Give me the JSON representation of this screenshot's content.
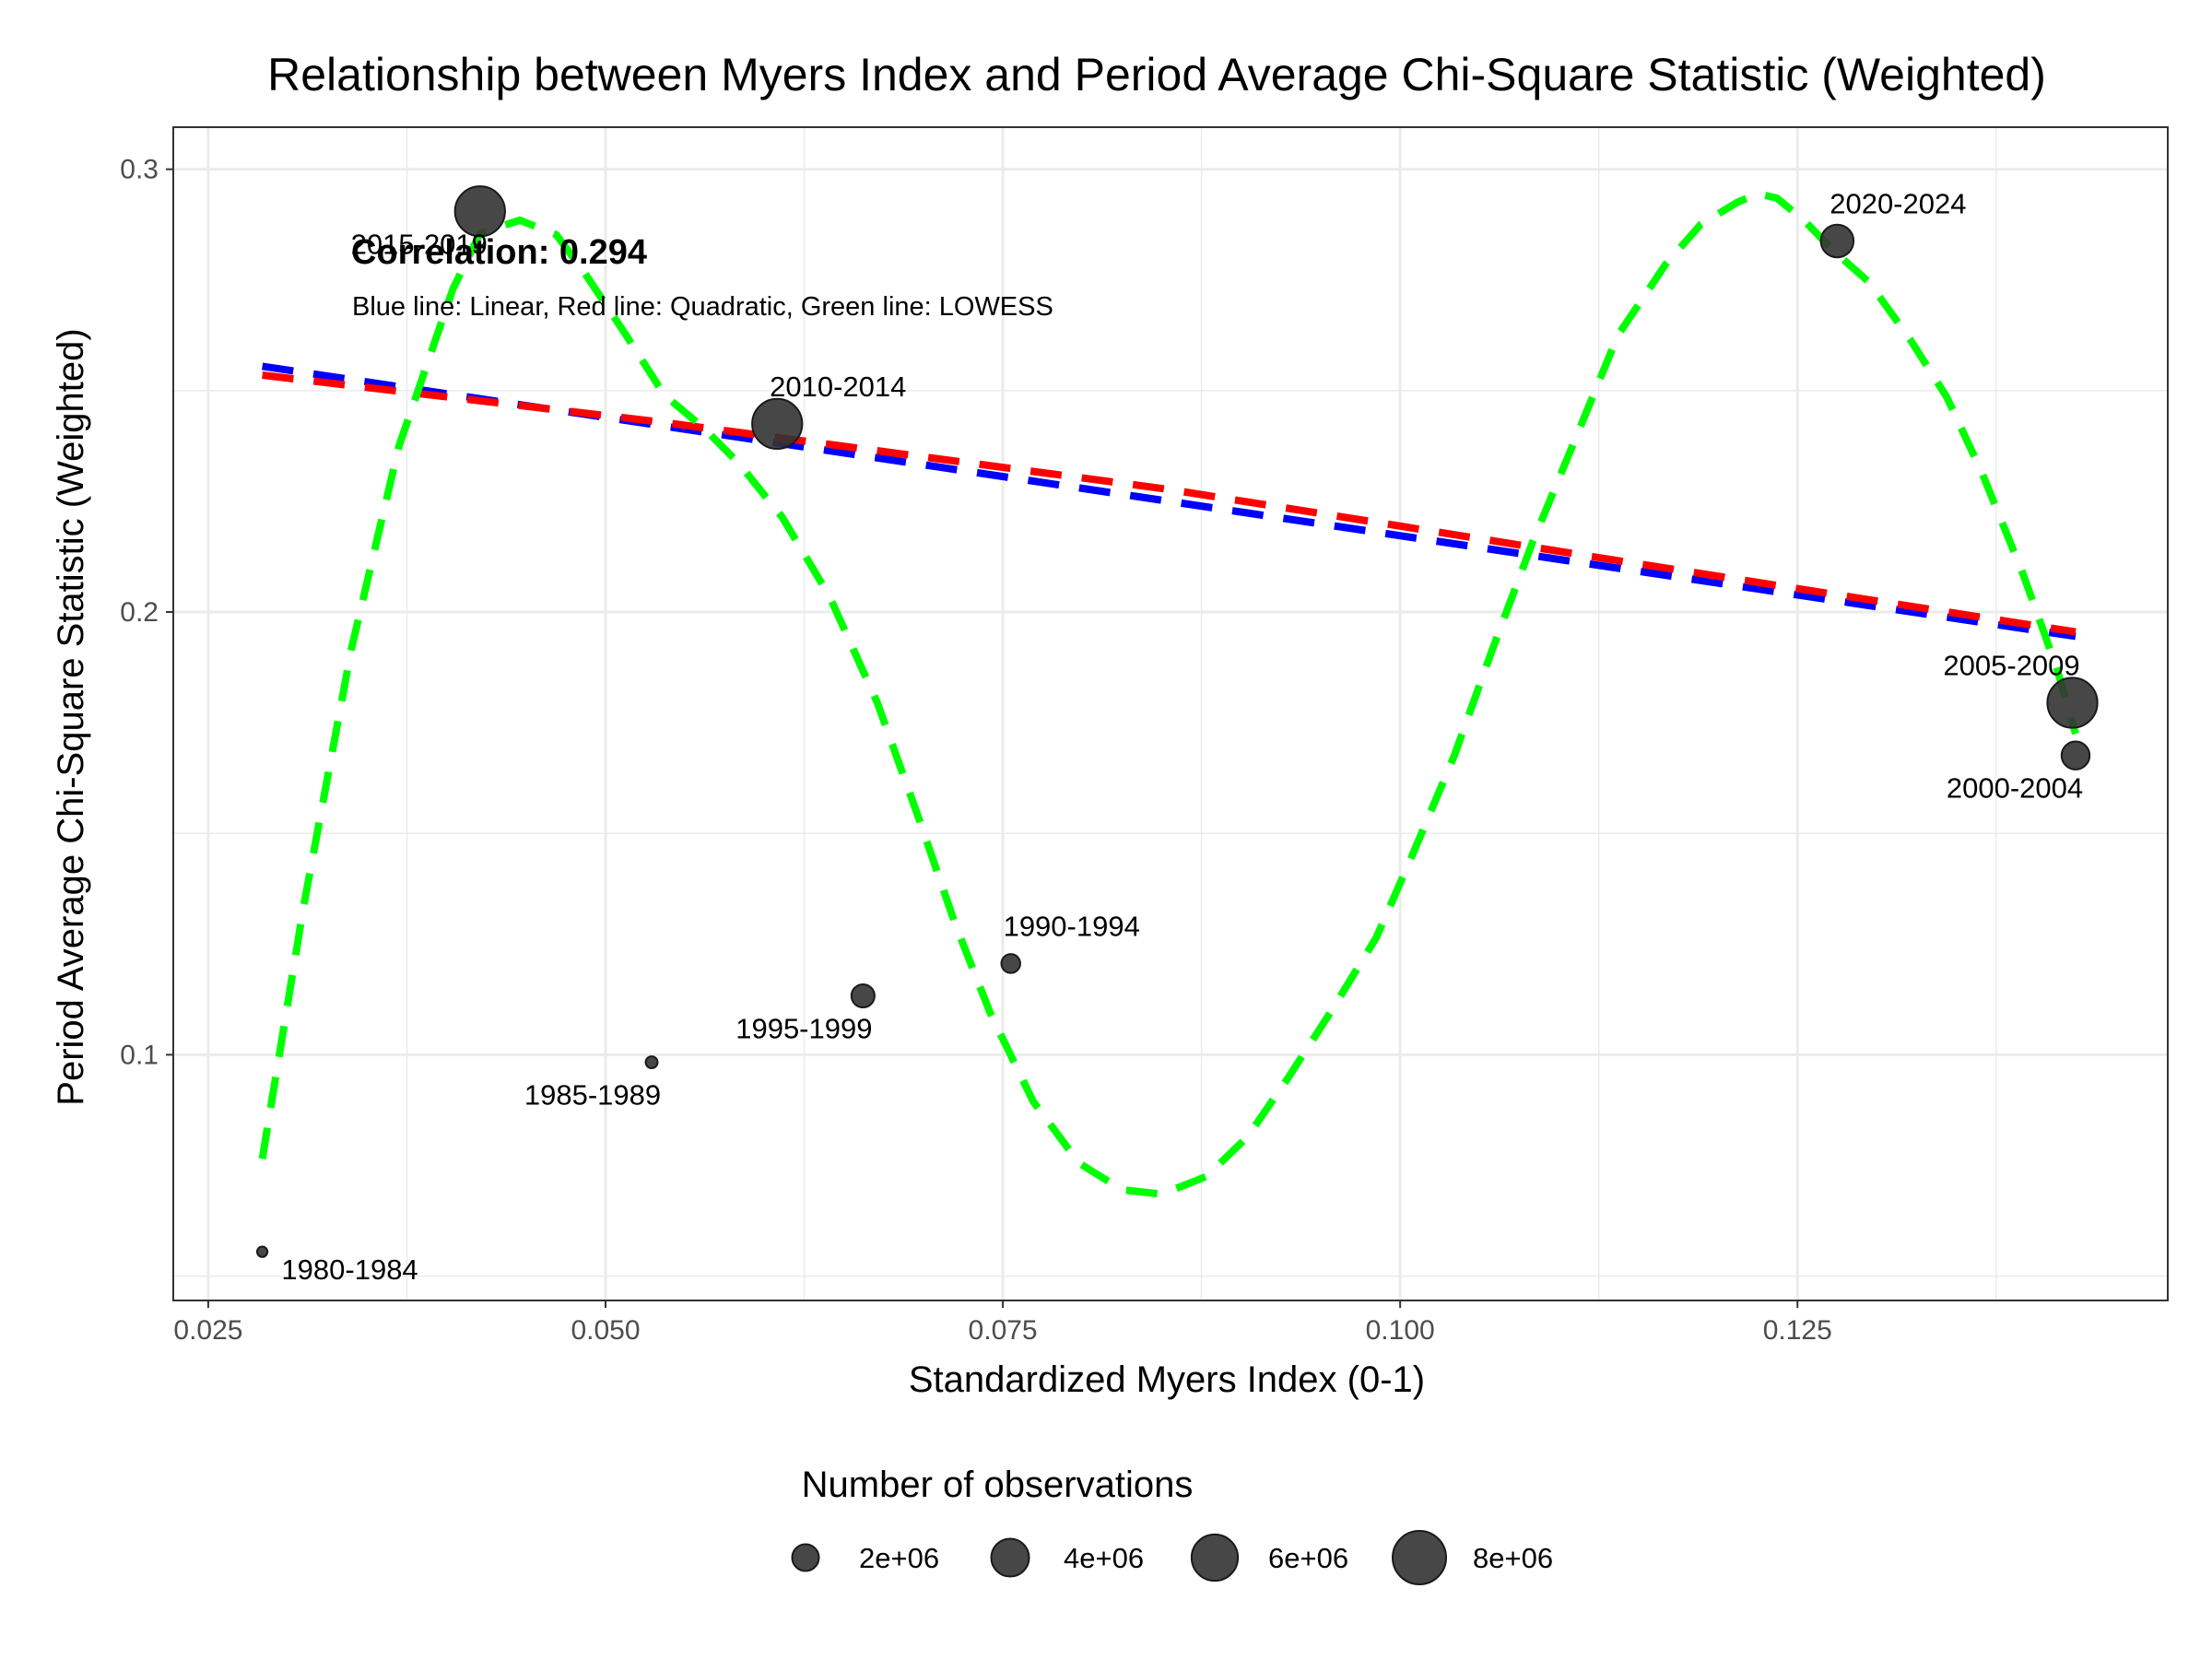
{
  "chart_data": {
    "type": "scatter",
    "title": "Relationship between Myers Index and Period Average Chi-Square Statistic (Weighted)",
    "xlabel": "Standardized Myers Index (0-1)",
    "ylabel": "Period Average Chi-Square Statistic (Weighted)",
    "xlim": [
      0.0228,
      0.1483
    ],
    "ylim": [
      0.0445,
      0.3095
    ],
    "x_ticks": [
      0.025,
      0.05,
      0.075,
      0.1,
      0.125
    ],
    "x_tick_labels": [
      "0.025",
      "0.050",
      "0.075",
      "0.100",
      "0.125"
    ],
    "y_ticks": [
      0.1,
      0.2,
      0.3
    ],
    "y_tick_labels": [
      "0.1",
      "0.2",
      "0.3"
    ],
    "grid": true,
    "points": [
      {
        "label": "1980-1984",
        "x": 0.0284,
        "y": 0.0555,
        "n": 300000
      },
      {
        "label": "1985-1989",
        "x": 0.0529,
        "y": 0.0983,
        "n": 400000
      },
      {
        "label": "1990-1994",
        "x": 0.0755,
        "y": 0.1206,
        "n": 1000000
      },
      {
        "label": "1995-1999",
        "x": 0.0662,
        "y": 0.1133,
        "n": 1500000
      },
      {
        "label": "2000-2004",
        "x": 0.1425,
        "y": 0.1676,
        "n": 2200000
      },
      {
        "label": "2005-2009",
        "x": 0.1423,
        "y": 0.1795,
        "n": 7000000
      },
      {
        "label": "2010-2014",
        "x": 0.0608,
        "y": 0.2425,
        "n": 7000000
      },
      {
        "label": "2015-2019",
        "x": 0.0421,
        "y": 0.2905,
        "n": 7000000
      },
      {
        "label": "2020-2024",
        "x": 0.1275,
        "y": 0.2838,
        "n": 3000000
      }
    ],
    "series": [
      {
        "type": "linear",
        "color": "#0000ff",
        "x": [
          0.0284,
          0.1425
        ],
        "y": [
          0.2555,
          0.1945
        ]
      },
      {
        "type": "quadratic",
        "color": "#ff0000",
        "x": [
          0.0284,
          0.0537,
          0.0854,
          0.1139,
          0.1425
        ],
        "y": [
          0.2535,
          0.2428,
          0.2277,
          0.2115,
          0.1955
        ]
      },
      {
        "type": "lowess",
        "color": "#00ff00",
        "x": [
          0.0284,
          0.031,
          0.034,
          0.037,
          0.0404,
          0.0421,
          0.0446,
          0.0469,
          0.0487,
          0.0513,
          0.0537,
          0.0562,
          0.0584,
          0.0611,
          0.0641,
          0.0671,
          0.0698,
          0.072,
          0.0742,
          0.0769,
          0.0798,
          0.0825,
          0.085,
          0.0878,
          0.0904,
          0.0929,
          0.0956,
          0.0985,
          0.1007,
          0.1034,
          0.1057,
          0.1083,
          0.1113,
          0.1137,
          0.1167,
          0.1189,
          0.1212,
          0.1225,
          0.1237,
          0.1254,
          0.1273,
          0.1295,
          0.1321,
          0.1344,
          0.1366,
          0.1392,
          0.1413,
          0.1425
        ],
        "y": [
          0.0765,
          0.1335,
          0.1915,
          0.2375,
          0.273,
          0.2855,
          0.2885,
          0.2852,
          0.2765,
          0.2625,
          0.249,
          0.2415,
          0.2335,
          0.2215,
          0.2035,
          0.1795,
          0.1525,
          0.1295,
          0.1095,
          0.0895,
          0.0755,
          0.0695,
          0.0685,
          0.0725,
          0.0815,
          0.0945,
          0.1095,
          0.1265,
          0.1445,
          0.1675,
          0.1905,
          0.2155,
          0.2415,
          0.2625,
          0.2785,
          0.2875,
          0.2925,
          0.2945,
          0.2935,
          0.2885,
          0.2815,
          0.2745,
          0.2615,
          0.2485,
          0.2315,
          0.2085,
          0.1875,
          0.1725
        ]
      }
    ],
    "annotations": {
      "correlation": "Correlation: 0.294",
      "line_note": "Blue line: Linear, Red line: Quadratic, Green line: LOWESS"
    },
    "legend": {
      "title": "Number of observations",
      "position": "bottom",
      "entries": [
        {
          "label": "2e+06",
          "n": 2000000
        },
        {
          "label": "4e+06",
          "n": 4000000
        },
        {
          "label": "6e+06",
          "n": 6000000
        },
        {
          "label": "8e+06",
          "n": 8000000
        }
      ]
    },
    "colors": {
      "points": "#333333",
      "grid": "#ebebeb",
      "panel_border": "#333333"
    }
  }
}
